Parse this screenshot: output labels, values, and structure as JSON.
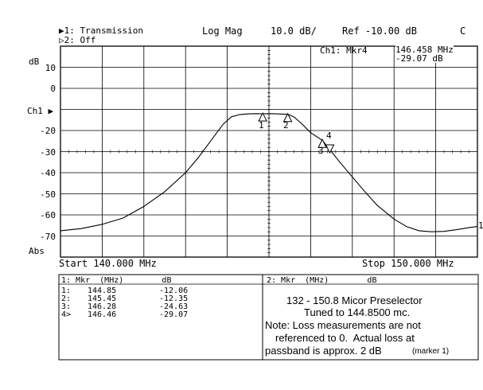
{
  "header": {
    "ch1_label": "▶1: Transmission",
    "ch2_label": "▷2: Off",
    "format": "Log Mag",
    "scale": "10.0 dB/",
    "ref": "Ref -10.00 dB",
    "corner": "C"
  },
  "marker_readout": {
    "title": "Ch1: Mkr4",
    "freq": "146.458 MHz",
    "value": "-29.07 dB"
  },
  "axis": {
    "unit": "dB",
    "ch1_marker": "Ch1 ▶",
    "abs": "Abs",
    "right_ref_marker": "1",
    "start": "Start 140.000 MHz",
    "stop": "Stop 150.000 MHz"
  },
  "marker_labels": [
    "1",
    "2",
    "3",
    "4"
  ],
  "marker_table_1": {
    "header": "1: Mkr  (MHz)        dB",
    "rows": [
      {
        "id": "1:",
        "freq": "144.85",
        "db": "-12.06"
      },
      {
        "id": "2:",
        "freq": "145.45",
        "db": "-12.35"
      },
      {
        "id": "3:",
        "freq": "146.28",
        "db": "-24.63"
      },
      {
        "id": "4>",
        "freq": "146.46",
        "db": "-29.07"
      }
    ]
  },
  "marker_table_2": {
    "header": "2: Mkr  (MHz)        dB"
  },
  "annotation": {
    "line1": "132 - 150.8 Micor Preselector",
    "line2": "Tuned to 144.8500 mc.",
    "line3": "Note: Loss measurements are not",
    "line4": "referenced to 0.  Actual loss at",
    "line5": "passband is approx. 2 dB",
    "line5_small": "(marker 1)"
  },
  "chart_data": {
    "type": "line",
    "xlabel": "",
    "ylabel": "dB",
    "xlim": [
      140.0,
      150.0
    ],
    "ylim": [
      -80,
      20
    ],
    "y_ticks": [
      10,
      0,
      -10,
      -20,
      -30,
      -40,
      -50,
      -60,
      -70
    ],
    "series": [
      {
        "x": [
          140.0,
          140.5,
          141.0,
          141.5,
          142.0,
          142.5,
          143.0,
          143.3,
          143.6,
          143.9,
          144.1,
          144.3,
          144.5,
          144.7,
          144.85,
          145.0,
          145.2,
          145.45,
          145.6,
          145.8,
          146.0,
          146.28,
          146.46,
          146.7,
          147.0,
          147.3,
          147.6,
          148.0,
          148.3,
          148.6,
          148.9,
          149.2,
          149.5,
          149.8,
          150.0
        ],
        "y": [
          -67.5,
          -66.5,
          -64.5,
          -61.5,
          -56,
          -49,
          -40,
          -33,
          -25,
          -17,
          -13.5,
          -12.4,
          -12.1,
          -12.0,
          -12.06,
          -12.0,
          -12.1,
          -12.35,
          -13.5,
          -17,
          -21,
          -24.63,
          -29.07,
          -35,
          -42,
          -49,
          -55.5,
          -62,
          -65.5,
          -67.5,
          -68,
          -67.8,
          -67,
          -66,
          -65.5
        ]
      }
    ],
    "markers": [
      {
        "label": "1",
        "x": 144.85,
        "y": -12.06
      },
      {
        "label": "2",
        "x": 145.45,
        "y": -12.35
      },
      {
        "label": "3",
        "x": 146.28,
        "y": -24.63
      },
      {
        "label": "4",
        "x": 146.46,
        "y": -29.07
      }
    ]
  }
}
